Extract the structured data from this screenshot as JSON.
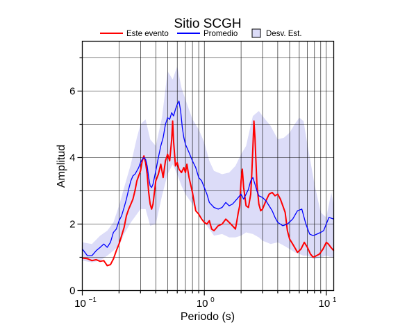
{
  "chart_data": {
    "type": "line",
    "title": "Sitio SCGH",
    "xlabel": "Periodo (s)",
    "ylabel": "Amplitud",
    "xscale": "log",
    "xlim": [
      0.1,
      11.5
    ],
    "ylim": [
      0,
      7.5
    ],
    "x_ticks": [
      {
        "value": 0.1,
        "base": "10",
        "exp": "−1"
      },
      {
        "value": 1,
        "base": "10",
        "exp": "0"
      },
      {
        "value": 10,
        "base": "10",
        "exp": "1"
      }
    ],
    "y_ticks": [
      0,
      2,
      4,
      6
    ],
    "grid": true,
    "legend_position": "top",
    "legend": [
      {
        "label": "Este evento",
        "kind": "line",
        "color": "#ff0000"
      },
      {
        "label": "Promedio",
        "kind": "line",
        "color": "#0000ff"
      },
      {
        "label": "Desv. Est.",
        "kind": "box",
        "color": "#dcdcf8"
      }
    ],
    "series": [
      {
        "name": "Este evento",
        "color": "#ff0000",
        "points": [
          [
            0.1,
            0.98
          ],
          [
            0.11,
            0.96
          ],
          [
            0.12,
            0.9
          ],
          [
            0.13,
            0.93
          ],
          [
            0.14,
            0.88
          ],
          [
            0.15,
            0.9
          ],
          [
            0.16,
            0.75
          ],
          [
            0.17,
            0.78
          ],
          [
            0.18,
            0.95
          ],
          [
            0.19,
            1.2
          ],
          [
            0.2,
            1.4
          ],
          [
            0.21,
            1.65
          ],
          [
            0.22,
            1.9
          ],
          [
            0.23,
            2.25
          ],
          [
            0.24,
            2.45
          ],
          [
            0.25,
            2.6
          ],
          [
            0.26,
            2.75
          ],
          [
            0.27,
            3.0
          ],
          [
            0.28,
            3.3
          ],
          [
            0.29,
            3.45
          ],
          [
            0.3,
            3.6
          ],
          [
            0.31,
            3.9
          ],
          [
            0.32,
            4.05
          ],
          [
            0.33,
            3.85
          ],
          [
            0.34,
            3.5
          ],
          [
            0.35,
            2.95
          ],
          [
            0.36,
            2.6
          ],
          [
            0.37,
            2.45
          ],
          [
            0.38,
            2.6
          ],
          [
            0.4,
            3.3
          ],
          [
            0.42,
            3.5
          ],
          [
            0.44,
            3.8
          ],
          [
            0.46,
            3.4
          ],
          [
            0.48,
            3.9
          ],
          [
            0.5,
            4.1
          ],
          [
            0.52,
            3.9
          ],
          [
            0.54,
            4.55
          ],
          [
            0.55,
            5.1
          ],
          [
            0.56,
            4.5
          ],
          [
            0.58,
            3.75
          ],
          [
            0.6,
            3.85
          ],
          [
            0.62,
            3.65
          ],
          [
            0.65,
            3.55
          ],
          [
            0.68,
            3.7
          ],
          [
            0.7,
            3.55
          ],
          [
            0.72,
            3.8
          ],
          [
            0.75,
            3.4
          ],
          [
            0.8,
            2.95
          ],
          [
            0.85,
            2.4
          ],
          [
            0.9,
            2.3
          ],
          [
            0.95,
            2.15
          ],
          [
            1.0,
            2.05
          ],
          [
            1.05,
            2.0
          ],
          [
            1.1,
            2.1
          ],
          [
            1.15,
            1.85
          ],
          [
            1.2,
            1.8
          ],
          [
            1.3,
            1.95
          ],
          [
            1.4,
            2.0
          ],
          [
            1.5,
            2.15
          ],
          [
            1.6,
            2.05
          ],
          [
            1.7,
            1.95
          ],
          [
            1.8,
            1.85
          ],
          [
            1.85,
            2.1
          ],
          [
            1.9,
            2.35
          ],
          [
            1.95,
            2.55
          ],
          [
            2.0,
            3.3
          ],
          [
            2.05,
            3.65
          ],
          [
            2.1,
            3.1
          ],
          [
            2.2,
            2.55
          ],
          [
            2.3,
            2.5
          ],
          [
            2.4,
            2.9
          ],
          [
            2.45,
            3.5
          ],
          [
            2.5,
            4.3
          ],
          [
            2.55,
            5.1
          ],
          [
            2.6,
            4.6
          ],
          [
            2.7,
            3.2
          ],
          [
            2.8,
            2.6
          ],
          [
            2.9,
            2.4
          ],
          [
            3.0,
            2.45
          ],
          [
            3.2,
            2.7
          ],
          [
            3.4,
            2.9
          ],
          [
            3.6,
            2.95
          ],
          [
            3.8,
            2.85
          ],
          [
            4.0,
            2.9
          ],
          [
            4.2,
            2.75
          ],
          [
            4.4,
            2.55
          ],
          [
            4.6,
            2.35
          ],
          [
            4.8,
            1.8
          ],
          [
            5.0,
            1.55
          ],
          [
            5.3,
            1.4
          ],
          [
            5.6,
            1.25
          ],
          [
            5.8,
            1.15
          ],
          [
            6.2,
            1.25
          ],
          [
            6.6,
            1.45
          ],
          [
            7.0,
            1.3
          ],
          [
            7.4,
            1.1
          ],
          [
            7.8,
            1.0
          ],
          [
            8.3,
            1.05
          ],
          [
            8.8,
            1.1
          ],
          [
            9.4,
            1.25
          ],
          [
            10.0,
            1.45
          ],
          [
            10.4,
            1.4
          ],
          [
            10.9,
            1.3
          ],
          [
            11.5,
            1.2
          ]
        ]
      },
      {
        "name": "Promedio",
        "color": "#0000ff",
        "points": [
          [
            0.1,
            1.25
          ],
          [
            0.105,
            1.15
          ],
          [
            0.11,
            1.05
          ],
          [
            0.12,
            1.05
          ],
          [
            0.13,
            1.2
          ],
          [
            0.14,
            1.3
          ],
          [
            0.15,
            1.4
          ],
          [
            0.16,
            1.3
          ],
          [
            0.17,
            1.45
          ],
          [
            0.18,
            1.75
          ],
          [
            0.19,
            1.85
          ],
          [
            0.2,
            2.1
          ],
          [
            0.21,
            2.25
          ],
          [
            0.22,
            2.5
          ],
          [
            0.23,
            2.75
          ],
          [
            0.24,
            3.05
          ],
          [
            0.25,
            3.3
          ],
          [
            0.26,
            3.45
          ],
          [
            0.27,
            3.5
          ],
          [
            0.28,
            3.6
          ],
          [
            0.29,
            3.7
          ],
          [
            0.3,
            3.85
          ],
          [
            0.31,
            3.95
          ],
          [
            0.32,
            4.0
          ],
          [
            0.33,
            3.95
          ],
          [
            0.34,
            3.75
          ],
          [
            0.35,
            3.4
          ],
          [
            0.36,
            3.15
          ],
          [
            0.37,
            3.1
          ],
          [
            0.38,
            3.2
          ],
          [
            0.4,
            3.6
          ],
          [
            0.42,
            4.0
          ],
          [
            0.44,
            4.35
          ],
          [
            0.46,
            4.6
          ],
          [
            0.48,
            5.0
          ],
          [
            0.5,
            5.2
          ],
          [
            0.52,
            5.15
          ],
          [
            0.54,
            5.35
          ],
          [
            0.56,
            5.25
          ],
          [
            0.58,
            5.45
          ],
          [
            0.6,
            5.6
          ],
          [
            0.62,
            5.7
          ],
          [
            0.64,
            5.4
          ],
          [
            0.66,
            4.9
          ],
          [
            0.68,
            4.6
          ],
          [
            0.7,
            4.4
          ],
          [
            0.72,
            4.3
          ],
          [
            0.75,
            4.15
          ],
          [
            0.8,
            3.9
          ],
          [
            0.85,
            3.7
          ],
          [
            0.9,
            3.4
          ],
          [
            0.95,
            3.3
          ],
          [
            1.0,
            3.1
          ],
          [
            1.05,
            2.9
          ],
          [
            1.1,
            2.65
          ],
          [
            1.2,
            2.5
          ],
          [
            1.3,
            2.45
          ],
          [
            1.4,
            2.5
          ],
          [
            1.5,
            2.65
          ],
          [
            1.6,
            2.55
          ],
          [
            1.7,
            2.6
          ],
          [
            1.8,
            2.7
          ],
          [
            1.9,
            2.8
          ],
          [
            2.0,
            2.9
          ],
          [
            2.1,
            2.75
          ],
          [
            2.2,
            2.9
          ],
          [
            2.3,
            3.05
          ],
          [
            2.4,
            3.3
          ],
          [
            2.5,
            3.4
          ],
          [
            2.6,
            3.2
          ],
          [
            2.7,
            3.0
          ],
          [
            2.8,
            2.85
          ],
          [
            3.0,
            2.8
          ],
          [
            3.2,
            2.7
          ],
          [
            3.4,
            2.55
          ],
          [
            3.6,
            2.4
          ],
          [
            3.8,
            2.2
          ],
          [
            4.0,
            2.05
          ],
          [
            4.4,
            1.95
          ],
          [
            4.8,
            2.0
          ],
          [
            5.3,
            2.15
          ],
          [
            5.8,
            2.4
          ],
          [
            6.3,
            2.45
          ],
          [
            6.8,
            2.0
          ],
          [
            7.3,
            1.7
          ],
          [
            7.8,
            1.65
          ],
          [
            8.4,
            1.7
          ],
          [
            9.0,
            1.75
          ],
          [
            9.5,
            1.8
          ],
          [
            10.0,
            2.0
          ],
          [
            10.5,
            2.2
          ],
          [
            11.5,
            2.15
          ]
        ]
      }
    ],
    "band": {
      "name": "Desv. Est.",
      "color": "#dcdcf8",
      "x": [
        0.1,
        0.12,
        0.14,
        0.16,
        0.18,
        0.2,
        0.22,
        0.25,
        0.28,
        0.3,
        0.33,
        0.36,
        0.4,
        0.45,
        0.5,
        0.55,
        0.6,
        0.65,
        0.7,
        0.8,
        0.9,
        1.0,
        1.1,
        1.2,
        1.4,
        1.6,
        1.8,
        2.0,
        2.2,
        2.5,
        2.8,
        3.0,
        3.5,
        4.0,
        4.5,
        5.0,
        5.5,
        6.0,
        6.5,
        7.0,
        8.0,
        9.0,
        10.0,
        11.0,
        11.5
      ],
      "upper": [
        1.45,
        1.4,
        1.65,
        1.8,
        2.05,
        2.55,
        3.1,
        3.8,
        4.6,
        5.0,
        5.15,
        4.55,
        4.35,
        5.2,
        6.6,
        6.35,
        6.75,
        6.1,
        5.75,
        5.15,
        4.85,
        4.45,
        3.9,
        3.6,
        3.5,
        3.55,
        3.75,
        4.1,
        4.35,
        5.25,
        5.4,
        5.25,
        4.95,
        4.55,
        4.6,
        4.75,
        5.0,
        5.2,
        5.1,
        4.4,
        3.2,
        2.35,
        2.2,
        2.95,
        2.55
      ],
      "lower": [
        0.9,
        0.85,
        0.9,
        1.05,
        1.2,
        1.35,
        1.7,
        2.05,
        2.3,
        2.45,
        2.45,
        1.95,
        2.0,
        2.85,
        3.5,
        3.8,
        3.5,
        3.15,
        2.9,
        2.6,
        2.35,
        2.05,
        1.85,
        1.65,
        1.7,
        1.6,
        1.6,
        1.65,
        1.75,
        1.7,
        1.6,
        1.5,
        1.4,
        1.45,
        1.35,
        1.25,
        1.15,
        1.1,
        1.05,
        1.05,
        0.95,
        1.0,
        1.05,
        1.0,
        1.0
      ]
    }
  }
}
